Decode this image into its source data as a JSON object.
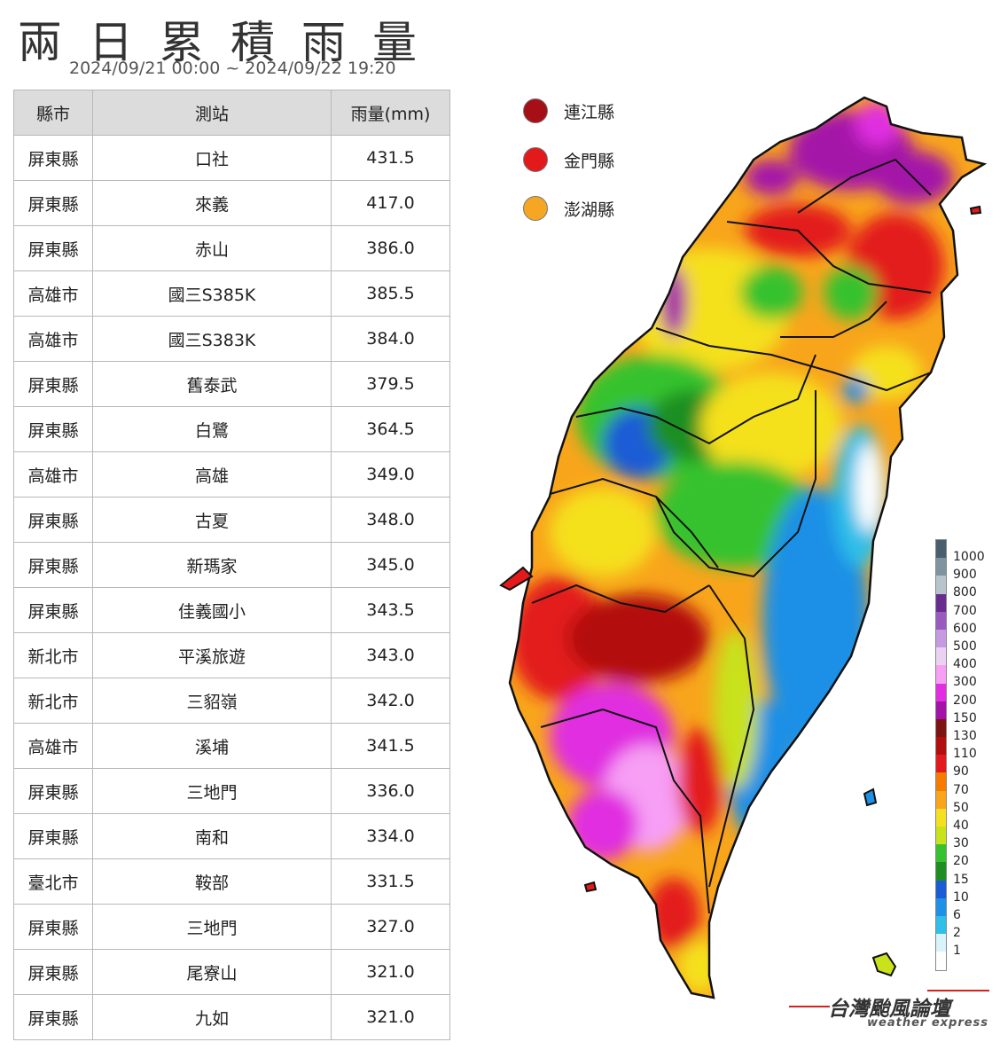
{
  "title": "兩日累積雨量",
  "period": "2024/09/21 00:00 ~ 2024/09/22 19:20",
  "table": {
    "headers": [
      "縣市",
      "測站",
      "雨量(mm)"
    ],
    "rows": [
      [
        "屏東縣",
        "口社",
        "431.5"
      ],
      [
        "屏東縣",
        "來義",
        "417.0"
      ],
      [
        "屏東縣",
        "赤山",
        "386.0"
      ],
      [
        "高雄市",
        "國三S385K",
        "385.5"
      ],
      [
        "高雄市",
        "國三S383K",
        "384.0"
      ],
      [
        "屏東縣",
        "舊泰武",
        "379.5"
      ],
      [
        "屏東縣",
        "白鷺",
        "364.5"
      ],
      [
        "高雄市",
        "高雄",
        "349.0"
      ],
      [
        "屏東縣",
        "古夏",
        "348.0"
      ],
      [
        "屏東縣",
        "新瑪家",
        "345.0"
      ],
      [
        "屏東縣",
        "佳義國小",
        "343.5"
      ],
      [
        "新北市",
        "平溪旅遊",
        "343.0"
      ],
      [
        "新北市",
        "三貂嶺",
        "342.0"
      ],
      [
        "高雄市",
        "溪埔",
        "341.5"
      ],
      [
        "屏東縣",
        "三地門",
        "336.0"
      ],
      [
        "屏東縣",
        "南和",
        "334.0"
      ],
      [
        "臺北市",
        "鞍部",
        "331.5"
      ],
      [
        "屏東縣",
        "三地門",
        "327.0"
      ],
      [
        "屏東縣",
        "尾寮山",
        "321.0"
      ],
      [
        "屏東縣",
        "九如",
        "321.0"
      ]
    ]
  },
  "islands_legend": [
    {
      "label": "連江縣",
      "color": "#a50f15"
    },
    {
      "label": "金門縣",
      "color": "#e31a1c"
    },
    {
      "label": "澎湖縣",
      "color": "#f5a623"
    }
  ],
  "color_scale": [
    {
      "label": "1000",
      "color": "#4a5f6e"
    },
    {
      "label": "900",
      "color": "#7f93a0"
    },
    {
      "label": "800",
      "color": "#b8c4cc"
    },
    {
      "label": "700",
      "color": "#6a2d8f"
    },
    {
      "label": "600",
      "color": "#9a5bbf"
    },
    {
      "label": "500",
      "color": "#c69ae0"
    },
    {
      "label": "400",
      "color": "#ecd2f2"
    },
    {
      "label": "300",
      "color": "#f79ef5"
    },
    {
      "label": "200",
      "color": "#e02ee0"
    },
    {
      "label": "150",
      "color": "#a412a8"
    },
    {
      "label": "130",
      "color": "#7c1414"
    },
    {
      "label": "110",
      "color": "#b30e0e"
    },
    {
      "label": "90",
      "color": "#e31a1c"
    },
    {
      "label": "70",
      "color": "#f57c00"
    },
    {
      "label": "50",
      "color": "#f8a51c"
    },
    {
      "label": "40",
      "color": "#f5e01f"
    },
    {
      "label": "30",
      "color": "#c8e21c"
    },
    {
      "label": "20",
      "color": "#36c22e"
    },
    {
      "label": "15",
      "color": "#1f8f24"
    },
    {
      "label": "10",
      "color": "#1a5bd6"
    },
    {
      "label": "6",
      "color": "#1e90e6"
    },
    {
      "label": "2",
      "color": "#2fbfe8"
    },
    {
      "label": "1",
      "color": "#d8f3fa"
    },
    {
      "label": "",
      "color": "#ffffff"
    }
  ],
  "brand": {
    "name": "台灣颱風論壇",
    "sub": "weather express"
  }
}
